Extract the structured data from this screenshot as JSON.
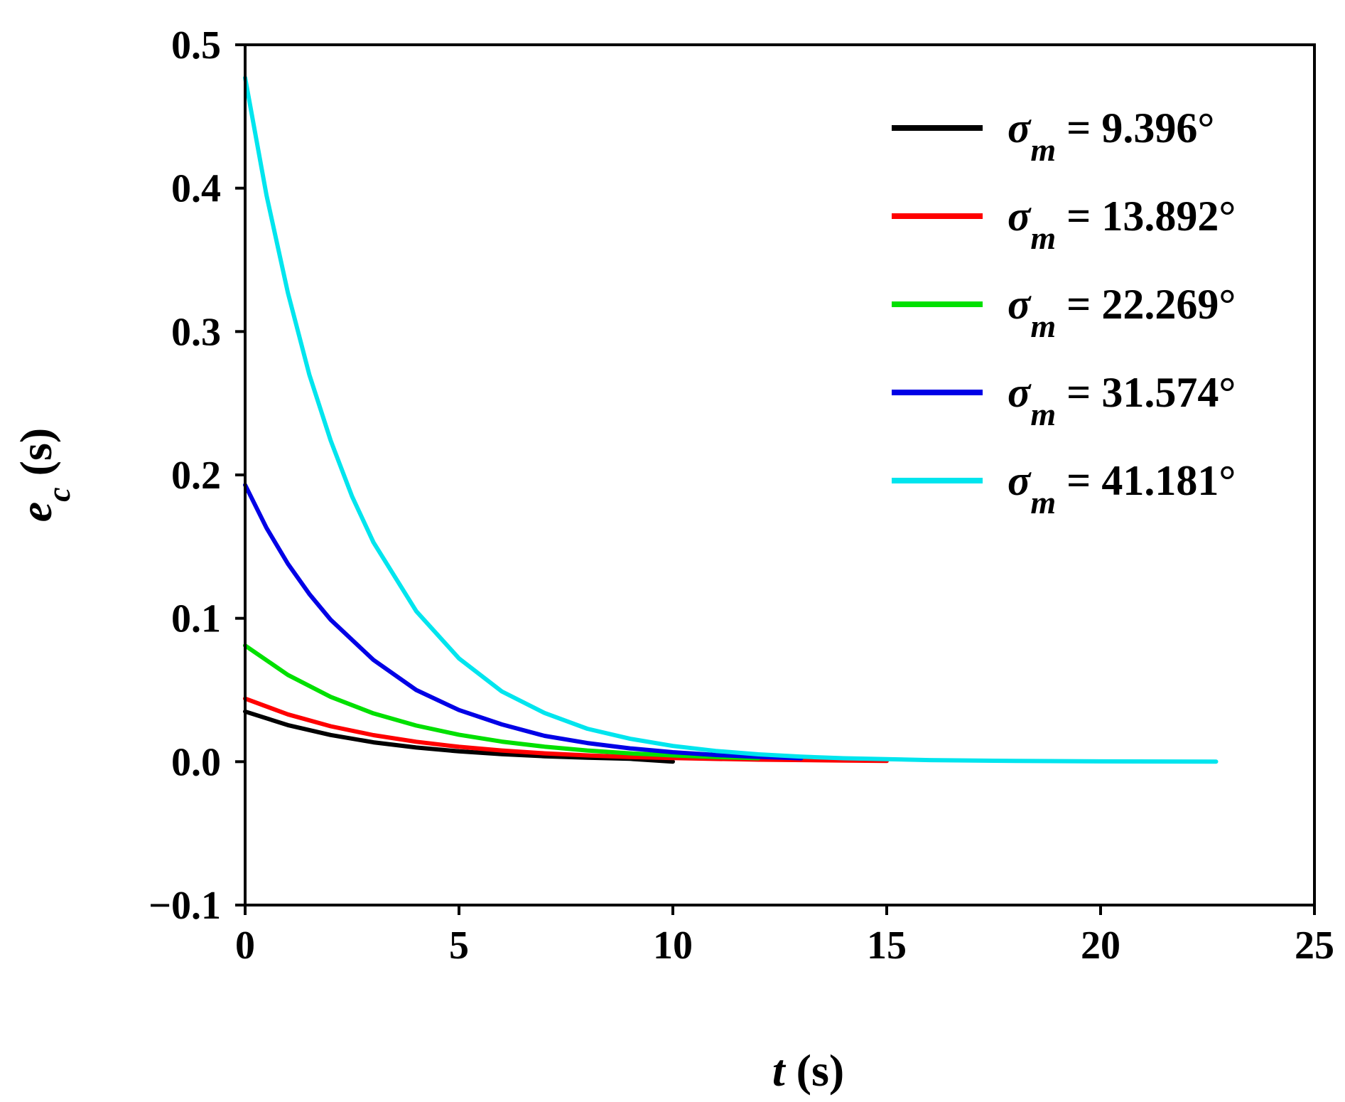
{
  "chart_data": {
    "type": "line",
    "title": "",
    "xlabel": {
      "var": "t",
      "unit": " (s)"
    },
    "ylabel": {
      "var": "e",
      "sub": "c",
      "unit": " (s)"
    },
    "xlim": [
      0,
      25
    ],
    "ylim": [
      -0.1,
      0.5
    ],
    "xticks": [
      0,
      5,
      10,
      15,
      20,
      25
    ],
    "yticks": [
      -0.1,
      0.0,
      0.1,
      0.2,
      0.3,
      0.4,
      0.5
    ],
    "ytick_labels": [
      "−0.1",
      "0.0",
      "0.1",
      "0.2",
      "0.3",
      "0.4",
      "0.5"
    ],
    "grid": false,
    "legend_position": "top-right",
    "series": [
      {
        "name": "σm = 9.396°",
        "symbol": "σ",
        "sub": "m",
        "value": " = 9.396°",
        "color": "#000000",
        "x": [
          0,
          1,
          2,
          3,
          4,
          5,
          6,
          7,
          8,
          9,
          10
        ],
        "y": [
          0.035,
          0.0255,
          0.0186,
          0.0135,
          0.0099,
          0.0072,
          0.0052,
          0.0038,
          0.0028,
          0.002,
          0.0
        ]
      },
      {
        "name": "σm = 13.892°",
        "symbol": "σ",
        "sub": "m",
        "value": " = 13.892°",
        "color": "#ff0000",
        "x": [
          0,
          1,
          2,
          3,
          4,
          5,
          6,
          7,
          8,
          9,
          10,
          12,
          14,
          15
        ],
        "y": [
          0.044,
          0.033,
          0.0247,
          0.0185,
          0.0139,
          0.0104,
          0.0078,
          0.0058,
          0.0044,
          0.0033,
          0.0025,
          0.0014,
          0.0008,
          0.0005
        ]
      },
      {
        "name": "σm = 22.269°",
        "symbol": "σ",
        "sub": "m",
        "value": " = 22.269°",
        "color": "#00e000",
        "x": [
          0,
          1,
          2,
          3,
          4,
          5,
          6,
          7,
          8,
          9,
          10,
          11,
          12
        ],
        "y": [
          0.081,
          0.0605,
          0.0452,
          0.0337,
          0.0252,
          0.0188,
          0.014,
          0.0105,
          0.0078,
          0.0058,
          0.0044,
          0.0033,
          0.0024
        ]
      },
      {
        "name": "σm = 31.574°",
        "symbol": "σ",
        "sub": "m",
        "value": " = 31.574°",
        "color": "#0000e6",
        "x": [
          0,
          0.5,
          1,
          1.5,
          2,
          3,
          4,
          5,
          6,
          7,
          8,
          9,
          10,
          11,
          12,
          13
        ],
        "y": [
          0.193,
          0.163,
          0.138,
          0.117,
          0.099,
          0.071,
          0.05,
          0.036,
          0.026,
          0.018,
          0.013,
          0.0093,
          0.0066,
          0.0047,
          0.0034,
          0.0024
        ]
      },
      {
        "name": "σm = 41.181°",
        "symbol": "σ",
        "sub": "m",
        "value": " = 41.181°",
        "color": "#00e5ee",
        "x": [
          0,
          0.5,
          1,
          1.5,
          2,
          2.5,
          3,
          4,
          5,
          6,
          7,
          8,
          9,
          10,
          11,
          12,
          13,
          14,
          16,
          18,
          20,
          22.7
        ],
        "y": [
          0.477,
          0.395,
          0.327,
          0.27,
          0.224,
          0.185,
          0.153,
          0.105,
          0.072,
          0.049,
          0.034,
          0.023,
          0.016,
          0.011,
          0.0075,
          0.0051,
          0.0035,
          0.0024,
          0.0011,
          0.0005,
          0.0002,
          0.0
        ]
      }
    ]
  }
}
